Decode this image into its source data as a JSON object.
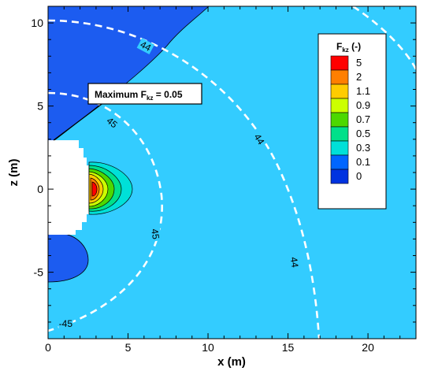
{
  "chart_data": {
    "type": "contour",
    "xlabel": "x (m)",
    "ylabel": "z (m)",
    "xlim": [
      0,
      23
    ],
    "ylim": [
      -9,
      11
    ],
    "x_ticks": [
      0,
      5,
      10,
      15,
      20
    ],
    "x_tick_labels": [
      "0",
      "5",
      "10",
      "15",
      "20"
    ],
    "y_ticks": [
      -5,
      0,
      5,
      10
    ],
    "y_tick_labels": [
      "-5",
      "0",
      "5",
      "10"
    ],
    "legend": {
      "title_main": "F",
      "title_sub": "kz",
      "title_suffix": " (-)",
      "placement": "top-right",
      "levels": [
        "5",
        "2",
        "1.1",
        "0.9",
        "0.7",
        "0.5",
        "0.3",
        "0.1",
        "0"
      ],
      "colors": [
        "#ff0000",
        "#ff7f00",
        "#ffcc00",
        "#ccff00",
        "#4cd800",
        "#00e08a",
        "#00e0d8",
        "#0066ff",
        "#0033e0"
      ]
    },
    "field_colors": {
      "background": "#33ccff",
      "low_region": "#1c5cf0",
      "void": "#ffffff"
    },
    "annotation": {
      "text_main": "Maximum F",
      "text_sub": "kz",
      "text_suffix": " = 0.05"
    },
    "contour_labels": [
      {
        "text": "44",
        "x": 6.1,
        "z": 8.6,
        "angle": 28
      },
      {
        "text": "44",
        "x": 13.2,
        "z": 3.0,
        "angle": 58
      },
      {
        "text": "44",
        "x": 15.4,
        "z": -4.4,
        "angle": 82
      },
      {
        "text": "45",
        "x": 4.0,
        "z": 4.0,
        "angle": 40
      },
      {
        "text": "45",
        "x": 6.7,
        "z": -2.7,
        "angle": 82
      },
      {
        "text": "-45",
        "x": 1.1,
        "z": -8.1,
        "angle": 0
      }
    ]
  }
}
